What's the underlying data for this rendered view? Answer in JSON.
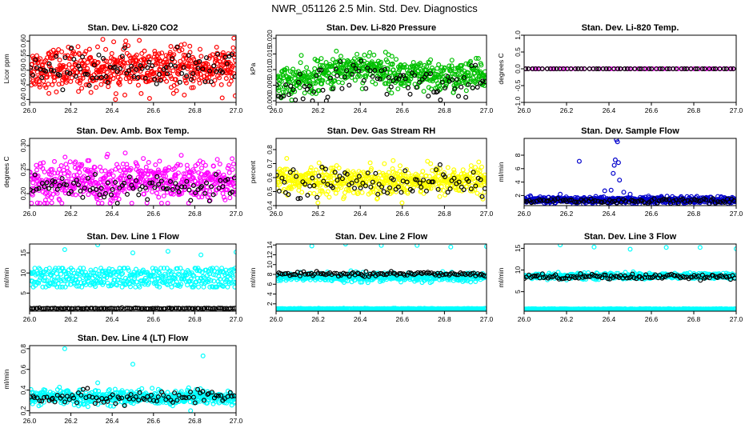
{
  "figure": {
    "title": "NWR_051126  2.5 Min. Std. Dev. Diagnostics"
  },
  "chart_data": [
    {
      "type": "scatter",
      "title": "Stan. Dev. Li-820 CO2",
      "ylabel": "Licor ppm",
      "xlim": [
        26.0,
        27.0
      ],
      "ylim": [
        0.39,
        0.62
      ],
      "xticks": [
        "26.0",
        "26.2",
        "26.4",
        "26.6",
        "26.8",
        "27.0"
      ],
      "yticks": [
        "0.40",
        "0.45",
        "0.50",
        "0.55",
        "0.60"
      ],
      "series": [
        {
          "color": "#ff0000",
          "n": 560,
          "mean": 0.505,
          "sd": 0.035,
          "min": 0.4,
          "max": 0.61
        },
        {
          "color": "#000000",
          "n": 90,
          "mean": 0.505,
          "sd": 0.03,
          "min": 0.43,
          "max": 0.58
        }
      ]
    },
    {
      "type": "scatter",
      "title": "Stan. Dev. Li-820 Pressure",
      "ylabel": "kPa",
      "xlim": [
        26.0,
        27.0
      ],
      "ylim": [
        -0.0005,
        0.021
      ],
      "xticks": [
        "26.0",
        "26.2",
        "26.4",
        "26.6",
        "26.8",
        "27.0"
      ],
      "yticks": [
        "0.000",
        "0.005",
        "0.010",
        "0.015",
        "0.020"
      ],
      "series": [
        {
          "color": "#00c000",
          "n": 560,
          "mean_start": 0.006,
          "mean_end": 0.008,
          "mean_peak": 0.011,
          "sd": 0.0025,
          "min": 0.0,
          "max": 0.02
        },
        {
          "color": "#000000",
          "n": 90,
          "mean_start": 0.004,
          "mean_end": 0.006,
          "mean_peak": 0.008,
          "sd": 0.0025,
          "min": 0.0,
          "max": 0.02
        }
      ]
    },
    {
      "type": "scatter",
      "title": "Stan. Dev. Li-820 Temp.",
      "ylabel": "degrees C",
      "xlim": [
        26.0,
        27.0
      ],
      "ylim": [
        -1.0,
        1.0
      ],
      "xticks": [
        "26.0",
        "26.2",
        "26.4",
        "26.6",
        "26.8",
        "27.0"
      ],
      "yticks": [
        "-1.0",
        "-0.5",
        "0.0",
        "0.5",
        "1.0"
      ],
      "series": [
        {
          "color": "#ff00ff",
          "n": 60,
          "mean": 0.0,
          "sd": 0.0,
          "min": 0.0,
          "max": 0.0
        },
        {
          "color": "#000000",
          "n": 60,
          "mean": 0.0,
          "sd": 0.0,
          "min": 0.0,
          "max": 0.0
        }
      ]
    },
    {
      "type": "scatter",
      "title": "Stan. Dev. Amb. Box Temp.",
      "ylabel": "degrees C",
      "xlim": [
        26.0,
        27.0
      ],
      "ylim": [
        0.175,
        0.315
      ],
      "xticks": [
        "26.0",
        "26.2",
        "26.4",
        "26.6",
        "26.8",
        "27.0"
      ],
      "yticks": [
        "0.20",
        "0.25",
        "0.30"
      ],
      "series": [
        {
          "color": "#ff00ff",
          "n": 560,
          "mean": 0.225,
          "sd": 0.022,
          "min": 0.18,
          "max": 0.31
        },
        {
          "color": "#000000",
          "n": 90,
          "mean": 0.21,
          "sd": 0.012,
          "min": 0.18,
          "max": 0.24
        }
      ]
    },
    {
      "type": "scatter",
      "title": "Stan. Dev. Gas Stream RH",
      "ylabel": "percent",
      "xlim": [
        26.0,
        27.0
      ],
      "ylim": [
        0.4,
        0.88
      ],
      "xticks": [
        "26.0",
        "26.2",
        "26.4",
        "26.6",
        "26.8",
        "27.0"
      ],
      "yticks": [
        "0.4",
        "0.5",
        "0.6",
        "0.7",
        "0.8"
      ],
      "series": [
        {
          "color": "#ffff00",
          "n": 560,
          "mean": 0.58,
          "sd": 0.05,
          "min": 0.42,
          "max": 0.86
        },
        {
          "color": "#000000",
          "n": 90,
          "mean": 0.57,
          "sd": 0.05,
          "min": 0.45,
          "max": 0.7
        }
      ]
    },
    {
      "type": "scatter",
      "title": "Stan. Dev. Sample Flow",
      "ylabel": "ml/min",
      "xlim": [
        26.0,
        27.0
      ],
      "ylim": [
        0.5,
        10.5
      ],
      "xticks": [
        "26.0",
        "26.2",
        "26.4",
        "26.6",
        "26.8",
        "27.0"
      ],
      "yticks": [
        "2",
        "4",
        "6",
        "8"
      ],
      "series": [
        {
          "color": "#0000cc",
          "n": 560,
          "mean": 1.3,
          "sd": 0.25,
          "min": 0.7,
          "max": 2.5
        },
        {
          "color": "#000000",
          "n": 90,
          "mean": 1.2,
          "sd": 0.2,
          "min": 0.8,
          "max": 1.9
        }
      ],
      "outliers": {
        "color": "#0000cc",
        "points": [
          [
            26.26,
            7.1
          ],
          [
            26.38,
            2.7
          ],
          [
            26.41,
            2.8
          ],
          [
            26.42,
            5.3
          ],
          [
            26.425,
            6.5
          ],
          [
            26.43,
            7.3
          ],
          [
            26.435,
            10.3
          ],
          [
            26.44,
            10.0
          ],
          [
            26.445,
            6.9
          ],
          [
            26.45,
            4.3
          ],
          [
            26.47,
            2.5
          ],
          [
            26.5,
            2.2
          ]
        ]
      }
    },
    {
      "type": "scatter",
      "title": "Stan. Dev. Line 1 Flow",
      "ylabel": "ml/min",
      "xlim": [
        26.0,
        27.0
      ],
      "ylim": [
        0.5,
        17.2
      ],
      "xticks": [
        "26.0",
        "26.2",
        "26.4",
        "26.6",
        "26.8",
        "27.0"
      ],
      "yticks": [
        "5",
        "10",
        "15"
      ],
      "series": [
        {
          "color": "#00ffff",
          "n": 400,
          "mean": 8.9,
          "sd": 0.9,
          "min": 6.5,
          "max": 11.2,
          "bands": [
            10.1,
            7.6
          ]
        },
        {
          "color": "#000000",
          "n": 110,
          "mean": 1.2,
          "sd": 0.05,
          "min": 1.0,
          "max": 1.4
        }
      ],
      "outliers": {
        "color": "#00ffff",
        "points": [
          [
            26.17,
            15.8
          ],
          [
            26.33,
            17.0
          ],
          [
            26.5,
            15.0
          ],
          [
            26.67,
            15.4
          ],
          [
            26.83,
            14.5
          ],
          [
            27.0,
            15.2
          ]
        ]
      }
    },
    {
      "type": "scatter",
      "title": "Stan. Dev. Line 2 Flow",
      "ylabel": "ml/min",
      "xlim": [
        26.0,
        27.0
      ],
      "ylim": [
        0.5,
        14.2
      ],
      "xticks": [
        "26.0",
        "26.2",
        "26.4",
        "26.6",
        "26.8",
        "27.0"
      ],
      "yticks": [
        "2",
        "4",
        "6",
        "8",
        "10",
        "12",
        "14"
      ],
      "series": [
        {
          "color": "#00ffff",
          "n": 420,
          "mean": 7.4,
          "sd": 0.45,
          "min": 4.5,
          "max": 9.0
        },
        {
          "color": "#000000",
          "n": 110,
          "mean": 8.1,
          "sd": 0.2,
          "min": 7.5,
          "max": 8.8
        },
        {
          "color": "#00ffff",
          "n": 250,
          "mean": 1.0,
          "sd": 0.04,
          "min": 0.8,
          "max": 1.2
        }
      ],
      "outliers": {
        "color": "#00ffff",
        "points": [
          [
            26.17,
            13.8
          ],
          [
            26.33,
            14.2
          ],
          [
            26.5,
            13.9
          ],
          [
            26.67,
            13.9
          ],
          [
            26.83,
            13.6
          ],
          [
            27.0,
            13.7
          ]
        ]
      }
    },
    {
      "type": "scatter",
      "title": "Stan. Dev. Line 3 Flow",
      "ylabel": "ml/min",
      "xlim": [
        26.0,
        27.0
      ],
      "ylim": [
        0.5,
        16.0
      ],
      "xticks": [
        "26.0",
        "26.2",
        "26.4",
        "26.6",
        "26.8",
        "27.0"
      ],
      "yticks": [
        "5",
        "10",
        "15"
      ],
      "series": [
        {
          "color": "#00ffff",
          "n": 420,
          "mean": 8.6,
          "sd": 0.35,
          "min": 7.2,
          "max": 10.2
        },
        {
          "color": "#000000",
          "n": 110,
          "mean": 8.5,
          "sd": 0.3,
          "min": 7.2,
          "max": 9.4
        },
        {
          "color": "#00ffff",
          "n": 250,
          "mean": 1.0,
          "sd": 0.04,
          "min": 0.8,
          "max": 1.2
        }
      ],
      "outliers": {
        "color": "#00ffff",
        "points": [
          [
            26.17,
            15.8
          ],
          [
            26.33,
            15.3
          ],
          [
            26.5,
            14.8
          ],
          [
            26.67,
            15.2
          ],
          [
            26.83,
            15.2
          ],
          [
            27.0,
            14.9
          ]
        ]
      }
    },
    {
      "type": "scatter",
      "title": "Stan. Dev. Line 4 (LT) Flow",
      "ylabel": "ml/min",
      "xlim": [
        26.0,
        27.0
      ],
      "ylim": [
        0.18,
        0.83
      ],
      "xticks": [
        "26.0",
        "26.2",
        "26.4",
        "26.6",
        "26.8",
        "27.0"
      ],
      "yticks": [
        "0.2",
        "0.4",
        "0.6",
        "0.8"
      ],
      "series": [
        {
          "color": "#00ffff",
          "n": 520,
          "mean": 0.33,
          "sd": 0.035,
          "min": 0.22,
          "max": 0.45
        },
        {
          "color": "#000000",
          "n": 90,
          "mean": 0.33,
          "sd": 0.035,
          "min": 0.25,
          "max": 0.42
        }
      ],
      "outliers": {
        "color": "#00ffff",
        "points": [
          [
            26.17,
            0.8
          ],
          [
            26.33,
            0.47
          ],
          [
            26.5,
            0.65
          ],
          [
            26.84,
            0.73
          ],
          [
            26.78,
            0.2
          ]
        ]
      }
    }
  ]
}
